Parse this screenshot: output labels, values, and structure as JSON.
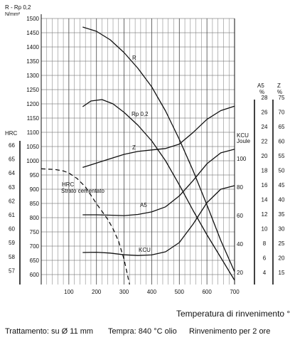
{
  "chart_data": {
    "type": "line",
    "x_ticks": [
      100,
      200,
      300,
      400,
      500,
      600,
      700
    ],
    "xlim": [
      0,
      700
    ],
    "x_caption": "Temperatura di rinvenimento °C",
    "grid": true,
    "strength_axis": {
      "label_line1": "R - Rp 0,2",
      "label_line2": "N/mm²",
      "ylim": [
        550,
        1500
      ],
      "ticks": [
        600,
        650,
        700,
        750,
        800,
        850,
        900,
        950,
        1000,
        1050,
        1100,
        1150,
        1200,
        1250,
        1300,
        1350,
        1400,
        1450,
        1500
      ]
    },
    "hrc_axis": {
      "label": "HRC",
      "ticks": [
        57,
        58,
        59,
        60,
        61,
        62,
        63,
        64,
        65,
        66
      ]
    },
    "kcu_axis": {
      "label_line1": "KCU",
      "label_line2": "Joule",
      "ticks": [
        20,
        40,
        60,
        80,
        100
      ]
    },
    "a5_axis": {
      "label_line1": "A5",
      "label_line2": "%",
      "ticks": [
        4,
        6,
        8,
        10,
        12,
        14,
        16,
        18,
        20,
        22,
        24,
        26,
        28
      ]
    },
    "z_axis": {
      "label_line1": "Z",
      "label_line2": "%",
      "ticks": [
        15,
        20,
        25,
        30,
        35,
        40,
        45,
        50,
        55,
        60,
        65,
        70,
        75
      ]
    },
    "series": [
      {
        "name": "R",
        "axis": "strength",
        "dash": false,
        "x": [
          150,
          200,
          250,
          300,
          350,
          400,
          450,
          500,
          550,
          600,
          650,
          700
        ],
        "y": [
          1470,
          1455,
          1425,
          1380,
          1325,
          1260,
          1175,
          1075,
          965,
          845,
          720,
          610
        ]
      },
      {
        "name": "Rp 0,2",
        "axis": "strength",
        "dash": false,
        "x": [
          150,
          180,
          220,
          260,
          300,
          350,
          400,
          450,
          500,
          550,
          600,
          650,
          700
        ],
        "y": [
          1190,
          1210,
          1215,
          1200,
          1170,
          1125,
          1070,
          1000,
          915,
          825,
          740,
          660,
          580
        ]
      },
      {
        "name": "Z",
        "axis": "z",
        "dash": false,
        "x": [
          150,
          200,
          250,
          300,
          350,
          400,
          450,
          500,
          550,
          600,
          650,
          700
        ],
        "y": [
          51,
          52.5,
          54,
          55.5,
          56.5,
          57,
          57.5,
          59,
          63,
          67.5,
          70.5,
          72
        ]
      },
      {
        "name": "A5",
        "axis": "a5",
        "dash": false,
        "x": [
          150,
          200,
          250,
          300,
          350,
          400,
          450,
          500,
          550,
          600,
          650,
          700
        ],
        "y": [
          11.9,
          11.9,
          11.85,
          11.8,
          11.95,
          12.3,
          13,
          14.5,
          16.6,
          18.9,
          20.4,
          20.9
        ]
      },
      {
        "name": "KCU",
        "axis": "kcu",
        "dash": false,
        "x": [
          150,
          200,
          250,
          300,
          350,
          400,
          450,
          500,
          550,
          600,
          650,
          700
        ],
        "y": [
          34,
          34.2,
          33.6,
          32.4,
          31.9,
          32.3,
          34.5,
          41,
          54,
          69,
          78.5,
          81
        ]
      },
      {
        "name": "HRC",
        "axis": "hrc",
        "dash": true,
        "x": [
          0,
          50,
          80,
          100,
          130,
          160,
          200,
          240,
          260,
          280,
          300,
          320
        ],
        "y": [
          64.3,
          64.25,
          64.15,
          64,
          63.6,
          63,
          61.8,
          60.7,
          60,
          59.1,
          57.8,
          56
        ]
      }
    ],
    "annotations": [
      "Strato cementato"
    ]
  },
  "footer": {
    "treatment": "Trattamento: su Ø 11 mm",
    "tempra": "Tempra: 840 °C olio",
    "rinvenimento": "Rinvenimento per 2 ore"
  }
}
